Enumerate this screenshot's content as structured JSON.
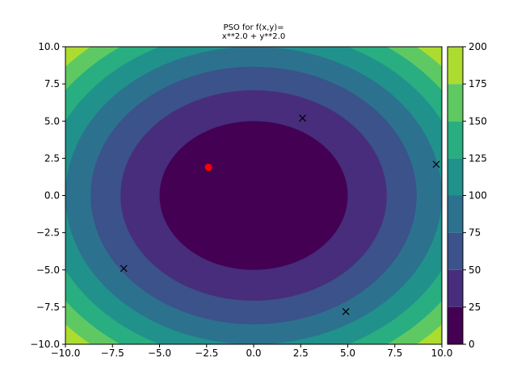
{
  "chart_data": {
    "type": "contour",
    "title_line1": "PSO for f(x,y)=",
    "title_line2": "x**2.0 + y**2.0",
    "xlim": [
      -10,
      10
    ],
    "ylim": [
      -10,
      10
    ],
    "x_ticks": [
      -10,
      -7.5,
      -5,
      -2.5,
      0,
      2.5,
      5,
      7.5,
      10
    ],
    "x_tick_labels": [
      "−10.0",
      "−7.5",
      "−5.0",
      "−2.5",
      "0.0",
      "2.5",
      "5.0",
      "7.5",
      "10.0"
    ],
    "y_ticks": [
      -10,
      -7.5,
      -5,
      -2.5,
      0,
      2.5,
      5,
      7.5,
      10
    ],
    "y_tick_labels": [
      "−10.0",
      "−7.5",
      "−5.0",
      "−2.5",
      "0.0",
      "2.5",
      "5.0",
      "7.5",
      "10.0"
    ],
    "levels": [
      0,
      25,
      50,
      75,
      100,
      125,
      150,
      175,
      200
    ],
    "level_colors": [
      "#440154",
      "#472d7b",
      "#3b528b",
      "#2c728e",
      "#21918c",
      "#28ae80",
      "#5ec962",
      "#addc30",
      "#fde725"
    ],
    "colorbar_ticks": [
      0,
      25,
      50,
      75,
      100,
      125,
      150,
      175,
      200
    ],
    "colorbar_tick_labels": [
      "0",
      "25",
      "50",
      "75",
      "100",
      "125",
      "150",
      "175",
      "200"
    ],
    "particles": [
      {
        "x": 2.6,
        "y": 5.2
      },
      {
        "x": 9.7,
        "y": 2.1
      },
      {
        "x": -6.9,
        "y": -4.9
      },
      {
        "x": 4.9,
        "y": -7.8
      }
    ],
    "best": {
      "x": -2.4,
      "y": 1.9
    },
    "particle_color": "#000000",
    "best_color": "#ff0000"
  }
}
